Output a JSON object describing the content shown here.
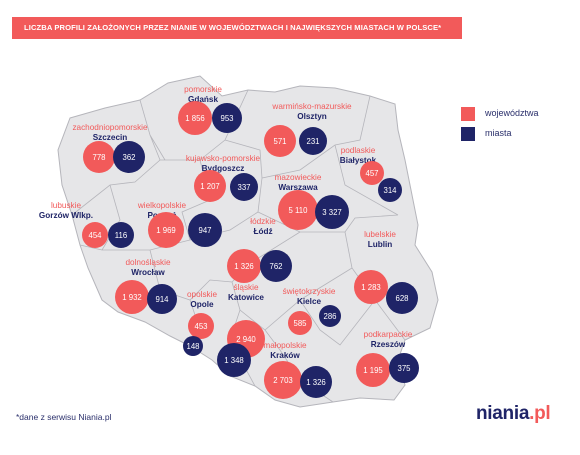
{
  "header": {
    "title": "LICZBA PROFILI ZAŁOŻONYCH PRZEZ NIANIE W WOJEWÓDZTWACH I NAJWIĘKSZYCH MIASTACH W POLSCE*"
  },
  "legend": {
    "items": [
      {
        "label": "województwa",
        "color": "#f25a5a"
      },
      {
        "label": "miasta",
        "color": "#1f2467"
      }
    ]
  },
  "colors": {
    "voivodeship": "#f25a5a",
    "city": "#1f2467",
    "map_fill": "#e6e6e8",
    "map_stroke": "#b5b5bb",
    "region_label": "#f25a5a",
    "city_label": "#1f2467"
  },
  "regions": [
    {
      "id": "pomorskie",
      "region": "pomorskie",
      "city": "Gdańsk",
      "region_value": "1 856",
      "city_value": "953"
    },
    {
      "id": "warminsko-mazurskie",
      "region": "warmińsko-mazurskie",
      "city": "Olsztyn",
      "region_value": "571",
      "city_value": "231"
    },
    {
      "id": "zachodniopomorskie",
      "region": "zachodniopomorskie",
      "city": "Szczecin",
      "region_value": "778",
      "city_value": "362"
    },
    {
      "id": "kujawsko-pomorskie",
      "region": "kujawsko-pomorskie",
      "city": "Bydgoszcz",
      "region_value": "1 207",
      "city_value": "337"
    },
    {
      "id": "podlaskie",
      "region": "podlaskie",
      "city": "Białystok",
      "region_value": "457",
      "city_value": "314"
    },
    {
      "id": "mazowieckie",
      "region": "mazowieckie",
      "city": "Warszawa",
      "region_value": "5 110",
      "city_value": "3 327"
    },
    {
      "id": "lubuskie",
      "region": "lubuskie",
      "city": "Gorzów Wlkp.",
      "region_value": "454",
      "city_value": "116"
    },
    {
      "id": "wielkopolskie",
      "region": "wielkopolskie",
      "city": "Poznań",
      "region_value": "1 969",
      "city_value": "947"
    },
    {
      "id": "lodzkie",
      "region": "łódzkie",
      "city": "Łódź",
      "region_value": "1 326",
      "city_value": "762"
    },
    {
      "id": "lubelskie",
      "region": "lubelskie",
      "city": "Lublin",
      "region_value": "1 283",
      "city_value": "628"
    },
    {
      "id": "dolnoslaskie",
      "region": "dolnośląskie",
      "city": "Wrocław",
      "region_value": "1 932",
      "city_value": "914"
    },
    {
      "id": "opolskie",
      "region": "opolskie",
      "city": "Opole",
      "region_value": "453",
      "city_value": "148"
    },
    {
      "id": "slaskie",
      "region": "śląskie",
      "city": "Katowice",
      "region_value": "2 940",
      "city_value": "1 348"
    },
    {
      "id": "swietokrzyskie",
      "region": "świętokrzyskie",
      "city": "Kielce",
      "region_value": "585",
      "city_value": "286"
    },
    {
      "id": "podkarpackie",
      "region": "podkarpackie",
      "city": "Rzeszów",
      "region_value": "1 195",
      "city_value": "375"
    },
    {
      "id": "malopolskie",
      "region": "małopolskie",
      "city": "Kraków",
      "region_value": "2 703",
      "city_value": "1 326"
    }
  ],
  "footnote": "*dane z serwisu Niania.pl",
  "logo": {
    "main": "niania",
    "suffix": ".pl"
  }
}
